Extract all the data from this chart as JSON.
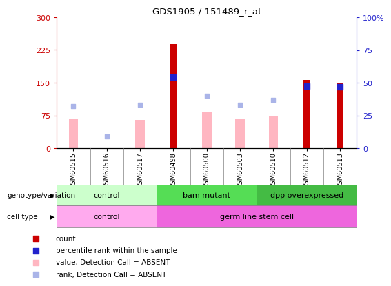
{
  "title": "GDS1905 / 151489_r_at",
  "samples": [
    "GSM60515",
    "GSM60516",
    "GSM60517",
    "GSM60498",
    "GSM60500",
    "GSM60503",
    "GSM60510",
    "GSM60512",
    "GSM60513"
  ],
  "count_values": [
    0,
    0,
    0,
    238,
    0,
    0,
    0,
    157,
    148
  ],
  "absent_value_values": [
    68,
    0,
    65,
    0,
    82,
    68,
    75,
    0,
    0
  ],
  "absent_rank_values": [
    97,
    27,
    100,
    0,
    120,
    100,
    110,
    0,
    0
  ],
  "percentile_rank_values": [
    0,
    0,
    0,
    163,
    0,
    0,
    0,
    142,
    140
  ],
  "left_ylim": [
    0,
    300
  ],
  "right_ylim": [
    0,
    100
  ],
  "left_yticks": [
    0,
    75,
    150,
    225,
    300
  ],
  "right_yticks": [
    0,
    25,
    50,
    75,
    100
  ],
  "left_tick_labels": [
    "0",
    "75",
    "150",
    "225",
    "300"
  ],
  "right_tick_labels": [
    "0",
    "25",
    "50",
    "75",
    "100%"
  ],
  "count_color": "#cc0000",
  "percentile_color": "#2222cc",
  "absent_value_color": "#ffb6c1",
  "absent_rank_color": "#aab4e8",
  "left_axis_color": "#cc0000",
  "right_axis_color": "#2222cc",
  "genotype_groups": [
    {
      "label": "control",
      "start": 0,
      "end": 3,
      "color": "#ccffcc"
    },
    {
      "label": "bam mutant",
      "start": 3,
      "end": 6,
      "color": "#55dd55"
    },
    {
      "label": "dpp overexpressed",
      "start": 6,
      "end": 9,
      "color": "#44bb44"
    }
  ],
  "celltype_groups": [
    {
      "label": "control",
      "start": 0,
      "end": 3,
      "color": "#ffaaee"
    },
    {
      "label": "germ line stem cell",
      "start": 3,
      "end": 9,
      "color": "#ee66dd"
    }
  ],
  "genotype_label": "genotype/variation",
  "celltype_label": "cell type",
  "legend_items": [
    {
      "label": "count",
      "color": "#cc0000",
      "marker": "s"
    },
    {
      "label": "percentile rank within the sample",
      "color": "#2222cc",
      "marker": "s"
    },
    {
      "label": "value, Detection Call = ABSENT",
      "color": "#ffb6c1",
      "marker": "s"
    },
    {
      "label": "rank, Detection Call = ABSENT",
      "color": "#aab4e8",
      "marker": "s"
    }
  ],
  "bar_width": 0.35,
  "absent_bar_width": 0.28
}
